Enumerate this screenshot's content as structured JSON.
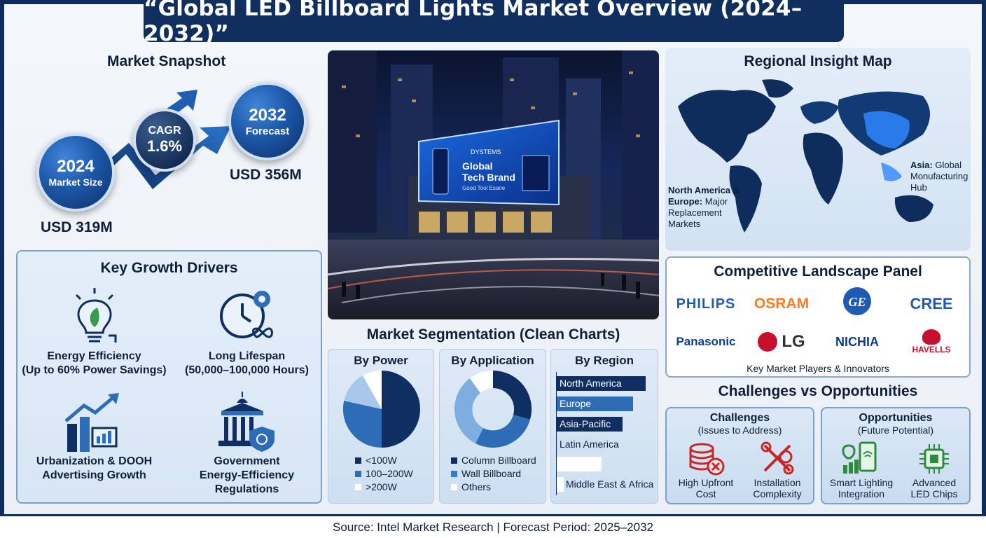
{
  "title": "“Global LED Billboard Lights Market Overview (2024–2032)”",
  "snapshot": {
    "title": "Market Snapshot",
    "start_year": "2024",
    "start_label": "Market Size",
    "start_value": "USD 319M",
    "cagr_label": "CAGR",
    "cagr_value": "1.6%",
    "end_year": "2032",
    "end_label": "Forecast",
    "end_value": "USD 356M"
  },
  "drivers": {
    "title": "Key Growth Drivers",
    "items": [
      {
        "label": "Energy Efficiency",
        "sub": "(Up to 60% Power Savings)",
        "icon": "bulb-leaf-icon"
      },
      {
        "label": "Long Lifespan",
        "sub": "(50,000–100,000 Hours)",
        "icon": "clock-gear-icon"
      },
      {
        "label": "Urbanization & DOOH",
        "sub": "Advertising Growth",
        "icon": "city-growth-icon"
      },
      {
        "label": "Government",
        "sub": "Energy-Efficiency",
        "sub2": "Regulations",
        "icon": "government-building-icon"
      }
    ]
  },
  "photo": {
    "billboard_line1": "Global",
    "billboard_line2": "Tech Brand",
    "billboard_line3": "Good Tool Esane",
    "billboard_brand": "DYSTEMS"
  },
  "segmentation": {
    "title": "Market Segmentation (Clean Charts)",
    "by_power": {
      "title": "By Power",
      "legend": [
        "<100W",
        "100–200W",
        ">200W"
      ],
      "colors": [
        "#0f2f62",
        "#2e6db5",
        "#a9c7e8"
      ]
    },
    "by_application": {
      "title": "By Application",
      "legend": [
        "Column Billboard",
        "Wall Billboard",
        "Others"
      ],
      "colors": [
        "#0f2f62",
        "#3b79c2",
        "#ffffff"
      ]
    },
    "by_region": {
      "title": "By Region",
      "bars": [
        "North America",
        "Europe",
        "Asia-Pacific",
        "Latin America",
        "Middle East & Africa"
      ]
    }
  },
  "map": {
    "title": "Regional Insight Map",
    "note_na_bold": "North America & Europe:",
    "note_na_rest": "Major Replacement Markets",
    "note_asia_bold": "Asia:",
    "note_asia_rest": "Global Monufacturing Hub"
  },
  "competition": {
    "title": "Competitive Landscape Panel",
    "logos": [
      "PHILIPS",
      "OSRAM",
      "GE",
      "CREE",
      "Panasonic",
      "LG",
      "NICHIA",
      "HAVELLS"
    ],
    "subtitle": "Key Market Players & Innovators"
  },
  "challenges_opportunities": {
    "title": "Challenges vs Opportunities",
    "challenges": {
      "title": "Challenges",
      "note": "(Issues to Address)",
      "items": [
        {
          "line1": "High Upfront",
          "line2": "Cost",
          "icon": "coins-icon"
        },
        {
          "line1": "Installation",
          "line2": "Complexity",
          "icon": "tools-icon"
        }
      ]
    },
    "opportunities": {
      "title": "Opportunities",
      "note": "(Future Potential)",
      "items": [
        {
          "line1": "Smart Lighting",
          "line2": "Integration",
          "icon": "smart-phone-bulb-icon"
        },
        {
          "line1": "Advanced",
          "line2": "LED Chips",
          "icon": "chip-icon"
        }
      ]
    }
  },
  "footer": "Source: Intel Market Research | Forecast Period: 2025–2032"
}
